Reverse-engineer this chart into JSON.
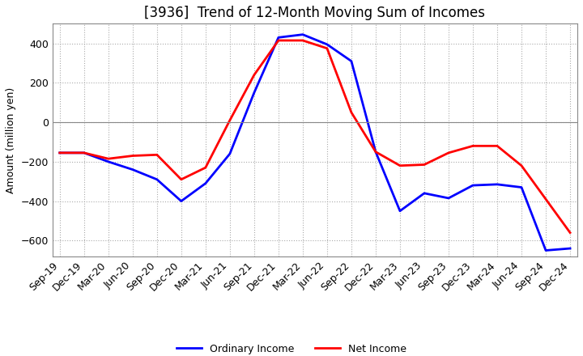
{
  "title": "[3936]  Trend of 12-Month Moving Sum of Incomes",
  "ylabel": "Amount (million yen)",
  "ylim": [
    -680,
    500
  ],
  "yticks": [
    400,
    200,
    0,
    -200,
    -400,
    -600
  ],
  "x_labels": [
    "Sep-19",
    "Dec-19",
    "Mar-20",
    "Jun-20",
    "Sep-20",
    "Dec-20",
    "Mar-21",
    "Jun-21",
    "Sep-21",
    "Dec-21",
    "Mar-22",
    "Jun-22",
    "Sep-22",
    "Dec-22",
    "Mar-23",
    "Jun-23",
    "Sep-23",
    "Dec-23",
    "Mar-24",
    "Jun-24",
    "Sep-24",
    "Dec-24"
  ],
  "ordinary_income": [
    -155,
    -155,
    -200,
    -240,
    -290,
    -400,
    -310,
    -160,
    150,
    430,
    445,
    395,
    310,
    -150,
    -450,
    -360,
    -385,
    -320,
    -315,
    -330,
    -650,
    -640
  ],
  "net_income": [
    -155,
    -155,
    -185,
    -170,
    -165,
    -290,
    -230,
    10,
    240,
    415,
    415,
    375,
    50,
    -150,
    -220,
    -215,
    -155,
    -120,
    -120,
    -220,
    -390,
    -560
  ],
  "ordinary_color": "#0000ff",
  "net_color": "#ff0000",
  "line_width": 2.0,
  "legend_labels": [
    "Ordinary Income",
    "Net Income"
  ],
  "grid_color": "#aaaaaa",
  "zero_line_color": "#888888",
  "background_color": "#ffffff",
  "title_fontsize": 12,
  "axis_fontsize": 9,
  "tick_fontsize": 9
}
